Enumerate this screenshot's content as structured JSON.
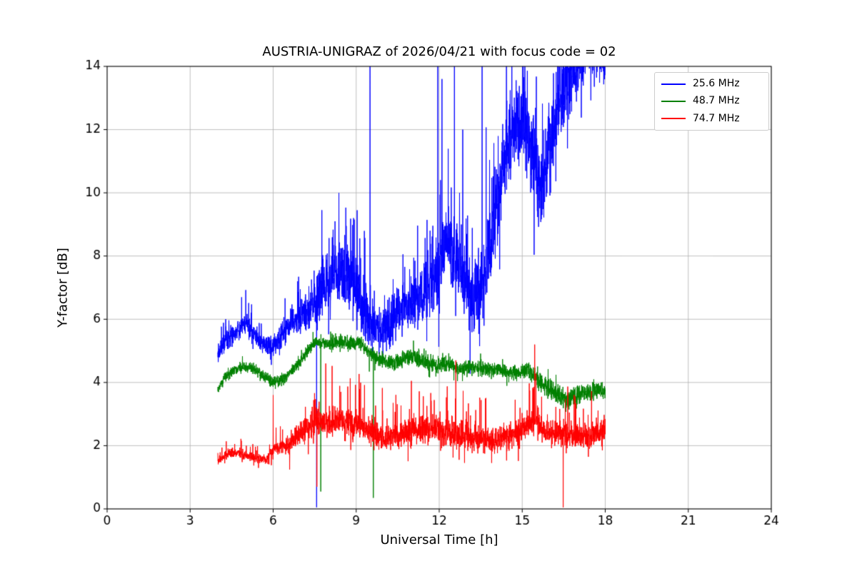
{
  "title": "AUSTRIA-UNIGRAZ of 2026/04/21 with focus code = 02",
  "x_axis_label": "Universal Time [h]",
  "y_axis_label": "Y-factor [dB]",
  "legend": [
    {
      "label": "25.6 MHz",
      "color": "#0000ff"
    },
    {
      "label": "48.7 MHz",
      "color": "#008000"
    },
    {
      "label": "74.7 MHz",
      "color": "#ff0000"
    }
  ],
  "chart_data": {
    "type": "line",
    "title": "AUSTRIA-UNIGRAZ of 2026/04/21 with focus code = 02",
    "xlabel": "Universal Time [h]",
    "ylabel": "Y-factor [dB]",
    "xlim": [
      0,
      24
    ],
    "ylim": [
      0,
      14
    ],
    "xticks": [
      0,
      3,
      6,
      9,
      12,
      15,
      18,
      21,
      24
    ],
    "yticks": [
      0,
      2,
      4,
      6,
      8,
      10,
      12,
      14
    ],
    "grid": true,
    "grid_color": "#b0b0b0",
    "legend_position": "upper right",
    "x_data_range": [
      4,
      18
    ],
    "sample_step": 0.005,
    "series": [
      {
        "name": "25.6 MHz",
        "color": "#0000ff",
        "seed": 11,
        "mean": [
          [
            4,
            4.9
          ],
          [
            4.3,
            5.4
          ],
          [
            4.7,
            5.6
          ],
          [
            5.0,
            5.9
          ],
          [
            5.3,
            5.5
          ],
          [
            5.7,
            5.2
          ],
          [
            6.0,
            5.1
          ],
          [
            6.3,
            5.5
          ],
          [
            6.7,
            5.9
          ],
          [
            7.0,
            6.1
          ],
          [
            7.5,
            6.5
          ],
          [
            8.0,
            7.2
          ],
          [
            8.3,
            7.6
          ],
          [
            8.6,
            7.3
          ],
          [
            9.0,
            7.0
          ],
          [
            9.3,
            6.2
          ],
          [
            9.6,
            5.8
          ],
          [
            9.9,
            5.6
          ],
          [
            10.3,
            6.0
          ],
          [
            10.7,
            6.4
          ],
          [
            11.1,
            6.6
          ],
          [
            11.5,
            6.8
          ],
          [
            12.0,
            7.6
          ],
          [
            12.3,
            8.6
          ],
          [
            12.6,
            8.0
          ],
          [
            13.0,
            6.9
          ],
          [
            13.3,
            6.5
          ],
          [
            13.6,
            7.3
          ],
          [
            14.0,
            9.2
          ],
          [
            14.3,
            11.0
          ],
          [
            14.6,
            12.0
          ],
          [
            15.0,
            12.3
          ],
          [
            15.4,
            11.0
          ],
          [
            15.7,
            10.2
          ],
          [
            16.0,
            11.5
          ],
          [
            16.4,
            13.0
          ],
          [
            16.8,
            13.8
          ],
          [
            17.2,
            14.2
          ],
          [
            17.6,
            14.6
          ],
          [
            18.0,
            14.4
          ]
        ],
        "amp": [
          [
            4,
            0.35
          ],
          [
            6,
            0.35
          ],
          [
            7,
            0.6
          ],
          [
            8,
            1.1
          ],
          [
            9,
            1.2
          ],
          [
            10,
            0.8
          ],
          [
            11,
            0.8
          ],
          [
            12,
            1.4
          ],
          [
            13,
            1.2
          ],
          [
            14,
            1.4
          ],
          [
            15,
            1.4
          ],
          [
            16,
            1.4
          ],
          [
            17,
            1.2
          ],
          [
            18,
            1.0
          ]
        ],
        "spike_prob": 0.06,
        "spike_scale": 2.2,
        "dip_prob": 0.02,
        "dip_scale": 1.6,
        "events": [
          [
            7.57,
            0.05
          ],
          [
            9.5,
            14.4
          ],
          [
            11.95,
            14.4
          ],
          [
            12.1,
            13.6
          ],
          [
            12.55,
            14.4
          ],
          [
            12.85,
            12.0
          ],
          [
            13.55,
            14.4
          ]
        ]
      },
      {
        "name": "48.7 MHz",
        "color": "#008000",
        "seed": 22,
        "mean": [
          [
            4,
            3.8
          ],
          [
            4.3,
            4.2
          ],
          [
            4.6,
            4.4
          ],
          [
            5.0,
            4.5
          ],
          [
            5.4,
            4.4
          ],
          [
            5.8,
            4.1
          ],
          [
            6.0,
            4.0
          ],
          [
            6.3,
            4.1
          ],
          [
            6.6,
            4.3
          ],
          [
            7.0,
            4.7
          ],
          [
            7.3,
            5.1
          ],
          [
            7.6,
            5.3
          ],
          [
            8.0,
            5.2
          ],
          [
            8.4,
            5.3
          ],
          [
            8.8,
            5.2
          ],
          [
            9.1,
            5.3
          ],
          [
            9.4,
            5.0
          ],
          [
            9.7,
            4.8
          ],
          [
            10.0,
            4.7
          ],
          [
            10.4,
            4.6
          ],
          [
            10.8,
            4.8
          ],
          [
            11.2,
            4.8
          ],
          [
            11.6,
            4.6
          ],
          [
            12.0,
            4.5
          ],
          [
            12.4,
            4.6
          ],
          [
            12.8,
            4.4
          ],
          [
            13.2,
            4.5
          ],
          [
            13.6,
            4.4
          ],
          [
            14.0,
            4.4
          ],
          [
            14.4,
            4.3
          ],
          [
            14.8,
            4.3
          ],
          [
            15.2,
            4.4
          ],
          [
            15.5,
            4.2
          ],
          [
            15.8,
            3.9
          ],
          [
            16.2,
            3.7
          ],
          [
            16.6,
            3.4
          ],
          [
            17.0,
            3.6
          ],
          [
            17.4,
            3.7
          ],
          [
            17.8,
            3.8
          ],
          [
            18.0,
            3.7
          ]
        ],
        "amp": [
          [
            4,
            0.18
          ],
          [
            7,
            0.2
          ],
          [
            9,
            0.25
          ],
          [
            12,
            0.28
          ],
          [
            15,
            0.25
          ],
          [
            16,
            0.35
          ],
          [
            18,
            0.3
          ]
        ],
        "spike_prob": 0.02,
        "spike_scale": 1.5,
        "dip_prob": 0.02,
        "dip_scale": 1.5,
        "events": [
          [
            7.72,
            0.55
          ],
          [
            9.62,
            0.35
          ]
        ]
      },
      {
        "name": "74.7 MHz",
        "color": "#ff0000",
        "seed": 33,
        "mean": [
          [
            4,
            1.5
          ],
          [
            4.3,
            1.7
          ],
          [
            4.6,
            1.8
          ],
          [
            5.0,
            1.7
          ],
          [
            5.4,
            1.6
          ],
          [
            5.8,
            1.6
          ],
          [
            6.0,
            1.9
          ],
          [
            6.3,
            2.0
          ],
          [
            6.6,
            2.1
          ],
          [
            7.0,
            2.4
          ],
          [
            7.3,
            2.6
          ],
          [
            7.6,
            2.8
          ],
          [
            8.0,
            2.7
          ],
          [
            8.4,
            2.8
          ],
          [
            8.8,
            2.7
          ],
          [
            9.2,
            2.6
          ],
          [
            9.6,
            2.4
          ],
          [
            10.0,
            2.2
          ],
          [
            10.4,
            2.3
          ],
          [
            10.8,
            2.4
          ],
          [
            11.2,
            2.5
          ],
          [
            11.6,
            2.5
          ],
          [
            12.0,
            2.5
          ],
          [
            12.4,
            2.4
          ],
          [
            12.8,
            2.3
          ],
          [
            13.2,
            2.2
          ],
          [
            13.6,
            2.2
          ],
          [
            14.0,
            2.2
          ],
          [
            14.4,
            2.3
          ],
          [
            14.8,
            2.4
          ],
          [
            15.2,
            2.7
          ],
          [
            15.5,
            2.8
          ],
          [
            15.8,
            2.5
          ],
          [
            16.2,
            2.4
          ],
          [
            16.6,
            2.3
          ],
          [
            17.0,
            2.3
          ],
          [
            17.4,
            2.3
          ],
          [
            17.8,
            2.4
          ],
          [
            18.0,
            2.5
          ]
        ],
        "amp": [
          [
            4,
            0.15
          ],
          [
            5.8,
            0.15
          ],
          [
            6.2,
            0.25
          ],
          [
            7,
            0.4
          ],
          [
            8,
            0.5
          ],
          [
            9,
            0.5
          ],
          [
            10,
            0.4
          ],
          [
            12,
            0.5
          ],
          [
            14,
            0.4
          ],
          [
            15.5,
            0.5
          ],
          [
            17,
            0.4
          ],
          [
            18,
            0.45
          ]
        ],
        "spike_prob": 0.05,
        "spike_scale": 3.2,
        "dip_prob": 0.03,
        "dip_scale": 1.8,
        "events": [
          [
            6.0,
            3.6
          ],
          [
            7.58,
            0.7
          ],
          [
            7.9,
            4.6
          ],
          [
            12.6,
            4.7
          ],
          [
            15.45,
            5.2
          ],
          [
            16.48,
            0.05
          ]
        ]
      }
    ]
  }
}
